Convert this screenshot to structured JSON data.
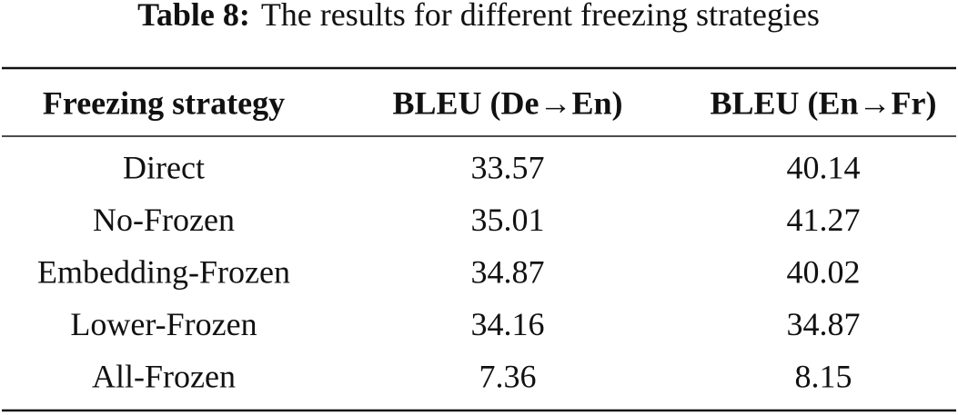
{
  "caption": {
    "label": "Table 8:",
    "text": "The results for different freezing strategies"
  },
  "table": {
    "header": [
      "Freezing strategy",
      "BLEU (De→En)",
      "BLEU (En→Fr)"
    ],
    "rows": [
      [
        "Direct",
        "33.57",
        "40.14"
      ],
      [
        "No-Frozen",
        "35.01",
        "41.27"
      ],
      [
        "Embedding-Frozen",
        "34.87",
        "40.02"
      ],
      [
        "Lower-Frozen",
        "34.16",
        "34.87"
      ],
      [
        "All-Frozen",
        "7.36",
        "8.15"
      ]
    ]
  }
}
